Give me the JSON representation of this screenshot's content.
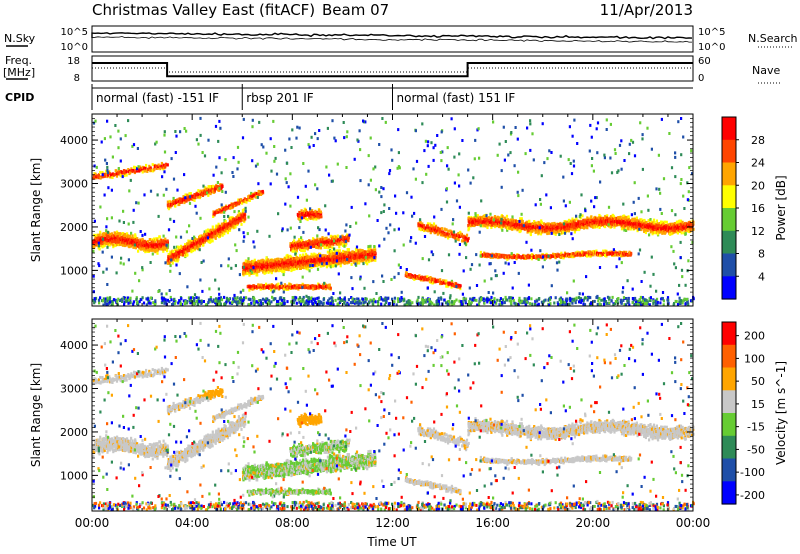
{
  "header": {
    "title": "Christmas Valley East (fitACF)",
    "beam": "Beam 07",
    "date": "11/Apr/2013"
  },
  "top_panels": {
    "nsky_label": "N.Sky",
    "nsky_ticks": [
      "10^5",
      "10^0"
    ],
    "nsearch_label": "N.Search",
    "nsearch_ticks": [
      "10^5",
      "10^0"
    ],
    "freq_label": "Freq.",
    "freq_unit": "[MHz]",
    "freq_ticks": [
      "18",
      "8"
    ],
    "nave_label": "Nave",
    "nave_ticks": [
      "60",
      "0"
    ],
    "cpid_label": "CPID",
    "cpid_segments": [
      {
        "label": "normal (fast) -151 IF",
        "start": 0.0,
        "end": 6.0
      },
      {
        "label": "rbsp 201 IF",
        "start": 6.0,
        "end": 12.0
      },
      {
        "label": "normal (fast) 151 IF",
        "start": 12.0,
        "end": 24.0
      }
    ],
    "freq_series": [
      {
        "start": 0.0,
        "end": 3.0,
        "value": 16.0
      },
      {
        "start": 3.0,
        "end": 15.0,
        "value": 9.4
      },
      {
        "start": 15.0,
        "end": 24.0,
        "value": 16.0
      }
    ]
  },
  "chart_data": [
    {
      "type": "heatmap",
      "name": "power",
      "ylabel": "Slant Range [km]",
      "y_ticks": [
        "1000",
        "2000",
        "3000",
        "4000"
      ],
      "colorbar_label": "Power [dB]",
      "colorbar_ticks": [
        "4",
        "8",
        "12",
        "16",
        "20",
        "24",
        "28"
      ],
      "xlim": [
        0,
        24
      ],
      "ylim": [
        180,
        4600
      ],
      "colors": [
        "#0000ff",
        "#1f4fa8",
        "#2e8b57",
        "#66cc33",
        "#ffff00",
        "#ffa500",
        "#ff4500",
        "#ff0000"
      ]
    },
    {
      "type": "heatmap",
      "name": "velocity",
      "ylabel": "Slant Range [km]",
      "y_ticks": [
        "1000",
        "2000",
        "3000",
        "4000"
      ],
      "colorbar_label": "Velocity [m s^-1]",
      "colorbar_ticks": [
        "200",
        "100",
        "50",
        "15",
        "-15",
        "-50",
        "-100",
        "-200"
      ],
      "xlim": [
        0,
        24
      ],
      "ylim": [
        180,
        4600
      ],
      "colors": [
        "#0000ff",
        "#1f4fa8",
        "#2e8b57",
        "#66cc33",
        "#c8c8c8",
        "#ffa500",
        "#ff6000",
        "#ff0000"
      ]
    }
  ],
  "x_axis": {
    "label": "Time UT",
    "ticks": [
      "00:00",
      "04:00",
      "08:00",
      "12:00",
      "16:00",
      "20:00",
      "00:00"
    ]
  }
}
